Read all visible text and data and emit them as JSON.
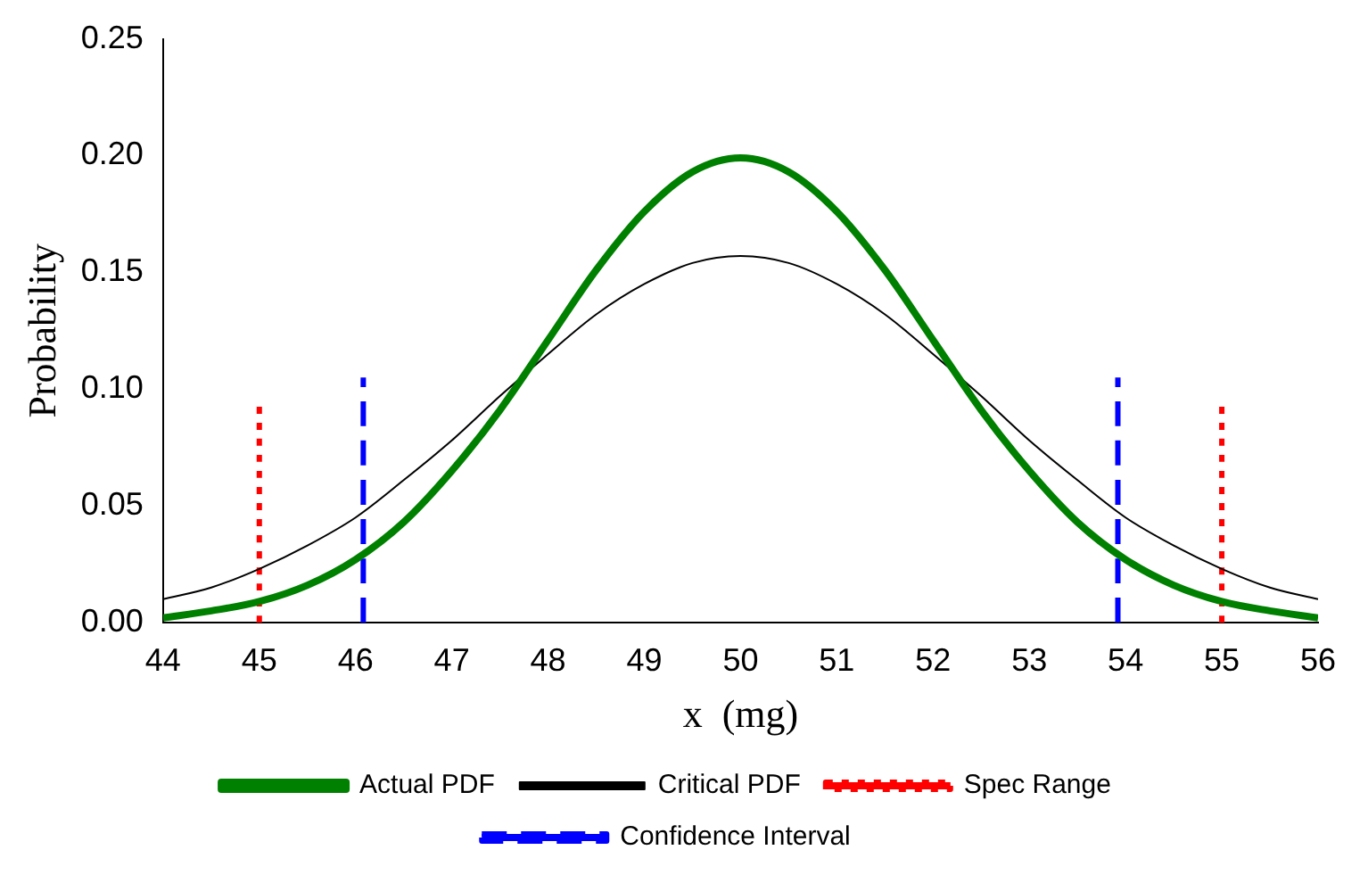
{
  "chart_data": {
    "type": "line",
    "xlabel": "x  (mg)",
    "ylabel": "Probability",
    "x": [
      44,
      44.5,
      45,
      45.5,
      46,
      46.5,
      47,
      47.5,
      48,
      48.5,
      49,
      49.5,
      50,
      50.5,
      51,
      51.5,
      52,
      52.5,
      53,
      53.5,
      54,
      54.5,
      55,
      55.5,
      56
    ],
    "series": [
      {
        "name": "Actual PDF",
        "color": "#008000",
        "line_style": "solid",
        "values": [
          0.002,
          0.005,
          0.009,
          0.016,
          0.027,
          0.043,
          0.065,
          0.091,
          0.121,
          0.151,
          0.176,
          0.193,
          0.199,
          0.193,
          0.176,
          0.151,
          0.121,
          0.091,
          0.065,
          0.043,
          0.027,
          0.016,
          0.009,
          0.005,
          0.002
        ]
      },
      {
        "name": "Critical PDF",
        "color": "#000000",
        "line_style": "solid",
        "values": [
          0.01,
          0.015,
          0.023,
          0.033,
          0.045,
          0.061,
          0.078,
          0.097,
          0.115,
          0.132,
          0.145,
          0.154,
          0.157,
          0.154,
          0.145,
          0.132,
          0.115,
          0.097,
          0.078,
          0.061,
          0.045,
          0.033,
          0.023,
          0.015,
          0.01
        ]
      },
      {
        "name": "Spec Range",
        "color": "#ff0000",
        "line_style": "dotted",
        "x": [
          45,
          45,
          null,
          55,
          55
        ],
        "values": [
          0,
          0.095,
          null,
          0,
          0.095
        ]
      },
      {
        "name": "Confidence Interval",
        "color": "#0000ff",
        "line_style": "dashed",
        "x": [
          46.08,
          46.08,
          null,
          53.92,
          53.92
        ],
        "values": [
          0,
          0.105,
          null,
          0,
          0.105
        ]
      }
    ],
    "xlim": [
      44,
      56
    ],
    "xticks": [
      44,
      45,
      46,
      47,
      48,
      49,
      50,
      51,
      52,
      53,
      54,
      55,
      56
    ],
    "ylim": [
      0,
      0.25
    ],
    "yticks": [
      {
        "value": 0,
        "label": "0.00"
      },
      {
        "value": 0.05,
        "label": "0.05"
      },
      {
        "value": 0.1,
        "label": "0.10"
      },
      {
        "value": 0.15,
        "label": "0.15"
      },
      {
        "value": 0.2,
        "label": "0.20"
      },
      {
        "value": 0.25,
        "label": "0.25"
      }
    ],
    "grid": false,
    "legend": "bottom",
    "marker": "none"
  }
}
